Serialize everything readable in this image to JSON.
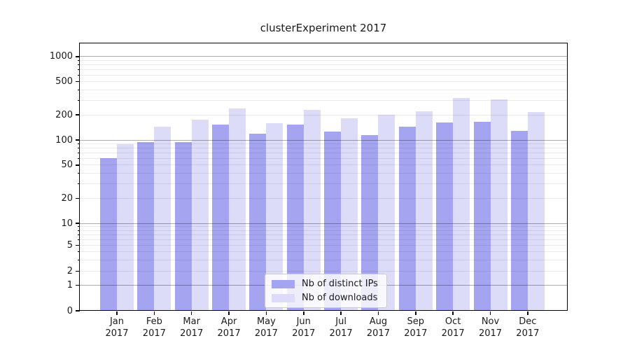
{
  "chart_data": {
    "type": "bar",
    "title": "clusterExperiment 2017",
    "scale": "symlog",
    "grid": true,
    "legend_position": "lower-center-inside",
    "categories": [
      "Jan",
      "Feb",
      "Mar",
      "Apr",
      "May",
      "Jun",
      "Jul",
      "Aug",
      "Sep",
      "Oct",
      "Nov",
      "Dec"
    ],
    "category_year": "2017",
    "series": [
      {
        "name": "Nb of distinct IPs",
        "color": "#a5a4f1",
        "values": [
          60,
          95,
          95,
          152,
          119,
          153,
          126,
          114,
          143,
          162,
          164,
          128
        ]
      },
      {
        "name": "Nb of downloads",
        "color": "#dcdcf9",
        "values": [
          89,
          145,
          175,
          239,
          158,
          230,
          181,
          200,
          220,
          320,
          308,
          218
        ]
      }
    ],
    "y_ticks": [
      0,
      1,
      2,
      5,
      10,
      20,
      50,
      100,
      200,
      500,
      1000
    ],
    "ylim": [
      0,
      1450
    ],
    "xlabel": "",
    "ylabel": ""
  }
}
